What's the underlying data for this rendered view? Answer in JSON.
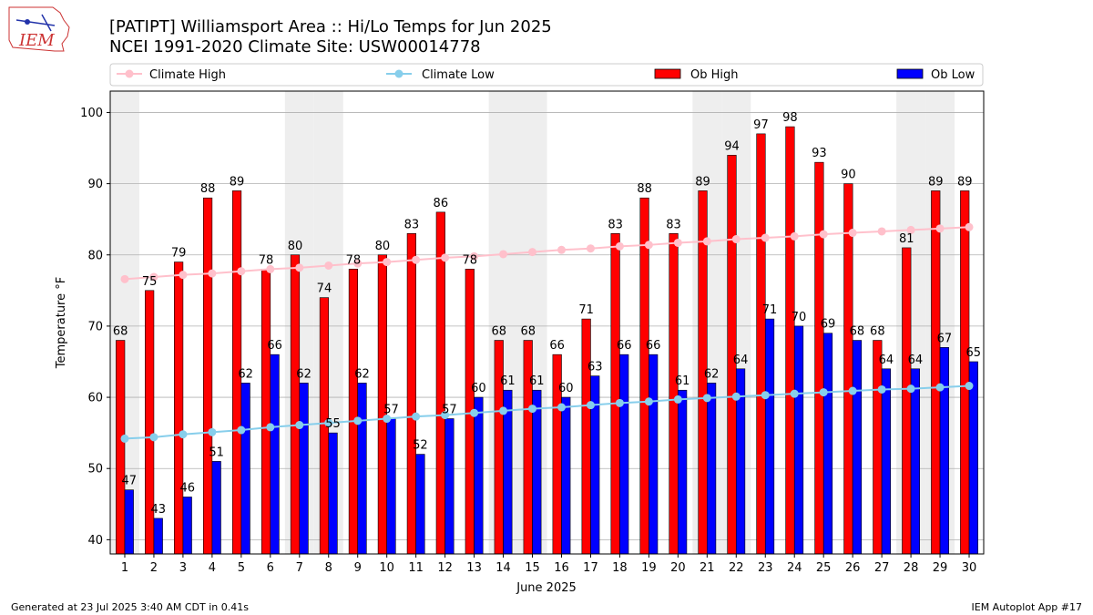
{
  "logo": {
    "text": "IEM"
  },
  "title_line1": "[PATIPT] Williamsport Area :: Hi/Lo Temps for Jun 2025",
  "title_line2": "NCEI 1991-2020 Climate Site: USW00014778",
  "footer_left": "Generated at 23 Jul 2025 3:40 AM CDT in 0.41s",
  "footer_right": "IEM Autoplot App #17",
  "colors": {
    "ob_high": "#ff0000",
    "ob_low": "#0000ff",
    "climate_high": "#ffc0cb",
    "climate_low": "#87ceeb",
    "weekend_band": "#eeeeee",
    "grid": "#b0b0b0"
  },
  "chart_data": {
    "type": "bar",
    "xlabel": "June 2025",
    "ylabel": "Temperature °F",
    "ylim": [
      38,
      103
    ],
    "yticks": [
      40,
      50,
      60,
      70,
      80,
      90,
      100
    ],
    "grid": "horizontal",
    "legend_placement": "top",
    "categories": [
      1,
      2,
      3,
      4,
      5,
      6,
      7,
      8,
      9,
      10,
      11,
      12,
      13,
      14,
      15,
      16,
      17,
      18,
      19,
      20,
      21,
      22,
      23,
      24,
      25,
      26,
      27,
      28,
      29,
      30
    ],
    "weekend_days": [
      1,
      7,
      8,
      14,
      15,
      21,
      22,
      28,
      29
    ],
    "series": [
      {
        "name": "Climate High",
        "kind": "line",
        "values": [
          76.6,
          76.9,
          77.2,
          77.4,
          77.7,
          78.0,
          78.2,
          78.5,
          78.8,
          79.0,
          79.3,
          79.6,
          79.8,
          80.1,
          80.4,
          80.7,
          80.9,
          81.2,
          81.4,
          81.7,
          81.9,
          82.2,
          82.4,
          82.6,
          82.9,
          83.1,
          83.3,
          83.5,
          83.7,
          83.9
        ]
      },
      {
        "name": "Climate Low",
        "kind": "line",
        "values": [
          54.2,
          54.4,
          54.8,
          55.1,
          55.4,
          55.8,
          56.1,
          56.4,
          56.7,
          57.0,
          57.3,
          57.5,
          57.8,
          58.1,
          58.4,
          58.6,
          58.9,
          59.2,
          59.4,
          59.7,
          59.9,
          60.1,
          60.3,
          60.5,
          60.7,
          60.9,
          61.1,
          61.2,
          61.4,
          61.6
        ]
      },
      {
        "name": "Ob High",
        "kind": "bar",
        "values": [
          68,
          75,
          79,
          88,
          89,
          78,
          80,
          74,
          78,
          80,
          83,
          86,
          78,
          68,
          68,
          66,
          71,
          83,
          88,
          83,
          89,
          94,
          97,
          98,
          93,
          90,
          68,
          81,
          89,
          89
        ]
      },
      {
        "name": "Ob Low",
        "kind": "bar",
        "values": [
          47,
          43,
          46,
          51,
          62,
          66,
          62,
          55,
          62,
          57,
          52,
          57,
          60,
          61,
          61,
          60,
          63,
          66,
          66,
          61,
          62,
          64,
          71,
          70,
          69,
          68,
          64,
          64,
          67,
          65
        ]
      }
    ]
  }
}
